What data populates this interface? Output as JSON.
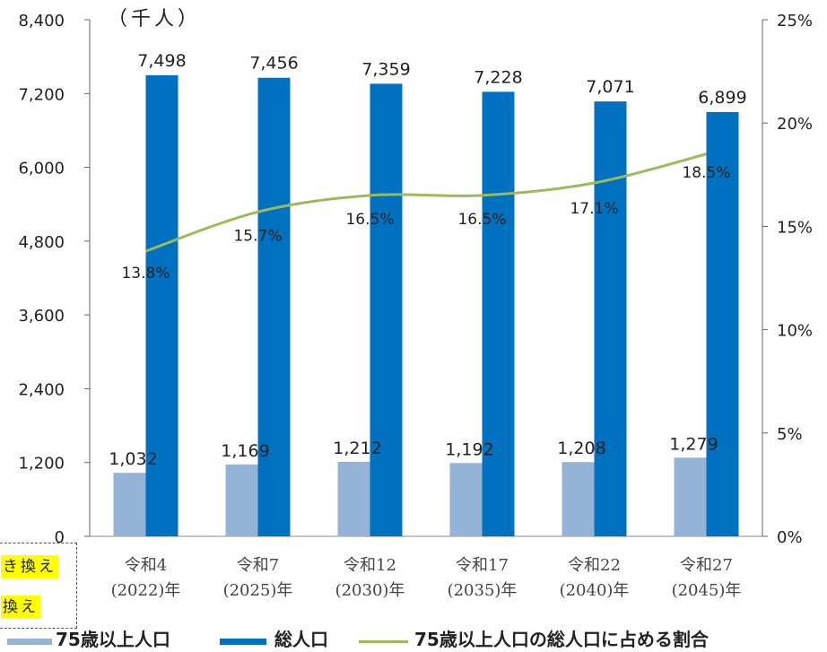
{
  "chart_data": {
    "type": "bar",
    "unit_label": "（千人）",
    "categories": [
      {
        "era": "令和4",
        "year": "(2022)年"
      },
      {
        "era": "令和7",
        "year": "(2025)年"
      },
      {
        "era": "令和12",
        "year": "(2030)年"
      },
      {
        "era": "令和17",
        "year": "(2035)年"
      },
      {
        "era": "令和22",
        "year": "(2040)年"
      },
      {
        "era": "令和27",
        "year": "(2045)年"
      }
    ],
    "series": [
      {
        "name": "75歳以上人口",
        "values": [
          1032,
          1169,
          1212,
          1192,
          1208,
          1279
        ],
        "labels": [
          "1,032",
          "1,169",
          "1,212",
          "1,192",
          "1,208",
          "1,279"
        ],
        "color": "#95b3d7"
      },
      {
        "name": "総人口",
        "values": [
          7498,
          7456,
          7359,
          7228,
          7071,
          6899
        ],
        "labels": [
          "7,498",
          "7,456",
          "7,359",
          "7,228",
          "7,071",
          "6,899"
        ],
        "color": "#0070c0"
      }
    ],
    "line_series": {
      "name": "75歳以上人口の総人口に占める割合",
      "values": [
        13.8,
        15.7,
        16.5,
        16.5,
        17.1,
        18.5
      ],
      "labels": [
        "13.8%",
        "15.7%",
        "16.5%",
        "16.5%",
        "17.1%",
        "18.5%"
      ],
      "color": "#9bbb59",
      "axis": "right"
    },
    "y_left": {
      "range": [
        0,
        8400
      ],
      "ticks": [
        "0",
        "1,200",
        "2,400",
        "3,600",
        "4,800",
        "6,000",
        "7,200",
        "8,400"
      ]
    },
    "y_right": {
      "range": [
        0,
        25
      ],
      "ticks": [
        "0%",
        "5%",
        "10%",
        "15%",
        "20%",
        "25%"
      ]
    },
    "grid": false,
    "legend_position": "bottom"
  },
  "note": {
    "line1": "き換え",
    "line2": "換え"
  }
}
